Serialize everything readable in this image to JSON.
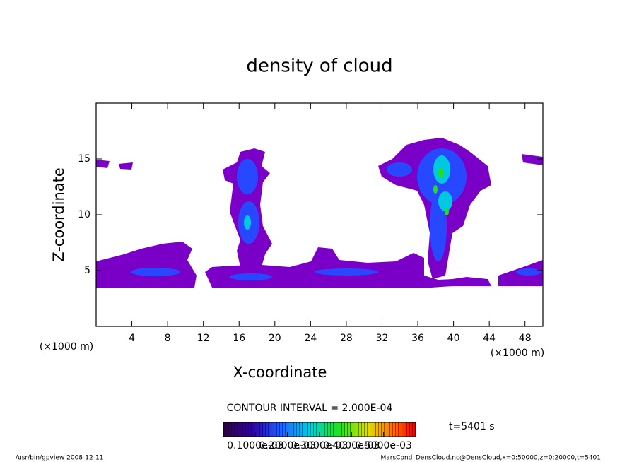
{
  "chart_data": {
    "type": "contour",
    "title": "density of cloud",
    "x_label": "X-coordinate",
    "y_label": "Z-coordinate",
    "x_units": "(×1000 m)",
    "y_units": "(×1000 m)",
    "xlim": [
      0,
      50
    ],
    "ylim": [
      0,
      20
    ],
    "xticks": [
      4,
      8,
      12,
      16,
      20,
      24,
      28,
      32,
      36,
      40,
      44,
      48
    ],
    "yticks": [
      5,
      10,
      15
    ],
    "contour_interval": "CONTOUR INTERVAL = 2.000E-04",
    "time": "t=5401 s",
    "colorbar": {
      "lim": [
        0,
        0.0006
      ],
      "ticks": [
        {
          "value": 0.0001,
          "label": "0.1000e-03"
        },
        {
          "value": 0.0002,
          "label": "0.2000e-03"
        },
        {
          "value": 0.0003,
          "label": "0.3000e-03"
        },
        {
          "value": 0.0004,
          "label": "0.4000e-03"
        },
        {
          "value": 0.0005,
          "label": "0.5000e-03"
        }
      ]
    },
    "footer_left": "/usr/bin/gpview   2008-12-11",
    "footer_right": "MarsCond_DensCloud.nc@DensCloud,x=0:50000,z=0:20000,t=5401"
  }
}
